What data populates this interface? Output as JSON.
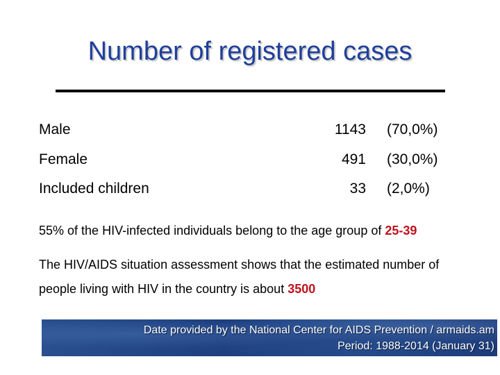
{
  "slide": {
    "title": "Number of registered cases"
  },
  "stats": [
    {
      "label": "Male",
      "count": "1143",
      "percent": "(70,0%)"
    },
    {
      "label": "Female",
      "count": "491",
      "percent": "(30,0%)"
    },
    {
      "label": "Included children",
      "count": "33",
      "percent": "(2,0%)"
    }
  ],
  "notes": {
    "age_prefix": "55% of the HIV-infected individuals belong to the age group of ",
    "age_value": "25-39",
    "estimate_line1": "The HIV/AIDS situation assessment shows that the estimated number of",
    "estimate_line2_prefix": "people living with HIV in the country is about ",
    "estimate_value": "3500"
  },
  "footer": {
    "source": "Date provided by the National Center for AIDS Prevention / armaids.am",
    "period": "Period: 1988-2014 (January 31)"
  },
  "colors": {
    "title": "#1f3f9a",
    "highlight": "#c0121c",
    "banner": "#244a8a"
  }
}
